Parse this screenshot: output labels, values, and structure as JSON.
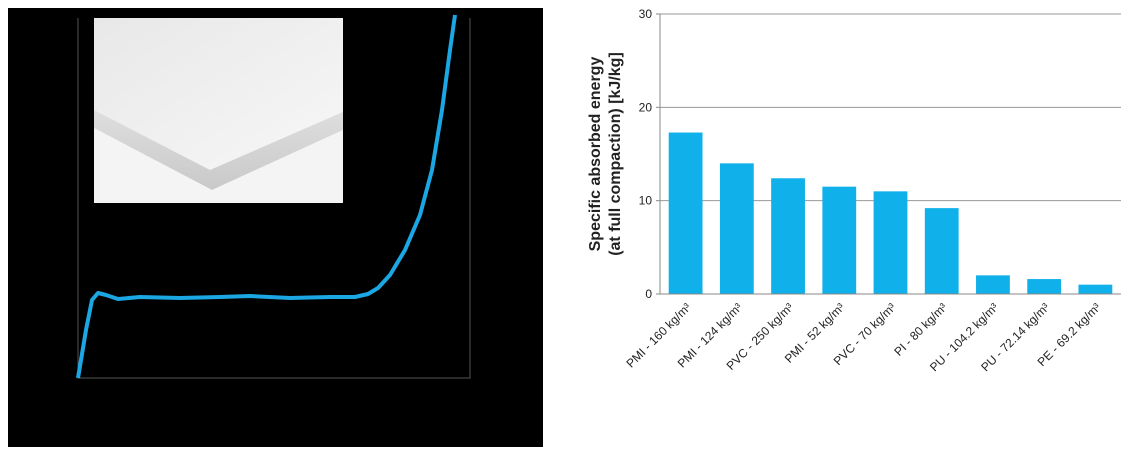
{
  "chart_data": {
    "type": "bar",
    "ylabel": [
      "Specific absorbed energy",
      "(at full compaction) [kJ/kg]"
    ],
    "categories": [
      "PMI - 160 kg/m³",
      "PMI - 124 kg/m³",
      "PVC - 250 kg/m³",
      "PMI - 52 kg/m³",
      "PVC - 70 kg/m³",
      "PI - 80 kg/m³",
      "PU - 104.2 kg/m³",
      "PU - 72.14 kg/m³",
      "PE - 69.2 kg/m³"
    ],
    "values": [
      17.3,
      14.0,
      12.4,
      11.5,
      11.0,
      9.2,
      2.0,
      1.6,
      1.0
    ],
    "color": "#10b0ea",
    "ylim": [
      0,
      30
    ],
    "yticks": [
      0,
      10,
      20,
      30
    ],
    "grid": true
  }
}
